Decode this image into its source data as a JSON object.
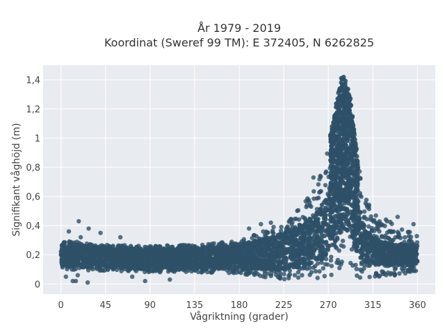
{
  "chart_data": {
    "type": "scatter",
    "title_line1": "År 1979 - 2019",
    "title_line2": "Koordinat (Sweref 99 TM): E 372405, N 6262825",
    "xlabel": "Vågriktning (grader)",
    "ylabel": "Signifikant våghöjd (m)",
    "xlim": [
      -18,
      378
    ],
    "ylim": [
      -0.07,
      1.5
    ],
    "xticks": [
      {
        "value": 0,
        "label": "0"
      },
      {
        "value": 45,
        "label": "45"
      },
      {
        "value": 90,
        "label": "90"
      },
      {
        "value": 135,
        "label": "135"
      },
      {
        "value": 180,
        "label": "180"
      },
      {
        "value": 225,
        "label": "225"
      },
      {
        "value": 270,
        "label": "270"
      },
      {
        "value": 315,
        "label": "315"
      },
      {
        "value": 360,
        "label": "360"
      }
    ],
    "yticks": [
      {
        "value": 0,
        "label": "0"
      },
      {
        "value": 0.2,
        "label": "0,2"
      },
      {
        "value": 0.4,
        "label": "0,4"
      },
      {
        "value": 0.6,
        "label": "0,6"
      },
      {
        "value": 0.8,
        "label": "0,8"
      },
      {
        "value": 1.0,
        "label": "1"
      },
      {
        "value": 1.2,
        "label": "1,2"
      },
      {
        "value": 1.4,
        "label": "1,4"
      }
    ],
    "grid": true,
    "marker_color": "#2e5068",
    "background_color": "#e8ebf0",
    "envelope": {
      "direction": [
        0,
        45,
        90,
        135,
        180,
        200,
        225,
        245,
        260,
        270,
        278,
        283,
        287,
        292,
        297,
        305,
        315,
        330,
        345,
        360
      ],
      "upper": [
        0.3,
        0.27,
        0.26,
        0.27,
        0.3,
        0.35,
        0.42,
        0.55,
        0.72,
        0.95,
        1.25,
        1.42,
        1.42,
        1.3,
        1.0,
        0.62,
        0.5,
        0.44,
        0.38,
        0.33
      ],
      "lower": [
        0.1,
        0.09,
        0.08,
        0.08,
        0.07,
        0.05,
        0.03,
        0.03,
        0.04,
        0.05,
        0.07,
        0.08,
        0.08,
        0.07,
        0.05,
        0.04,
        0.04,
        0.05,
        0.06,
        0.08
      ],
      "core_low": [
        0.12,
        0.11,
        0.1,
        0.1,
        0.1,
        0.1,
        0.1,
        0.12,
        0.15,
        0.2,
        0.28,
        0.35,
        0.35,
        0.3,
        0.22,
        0.15,
        0.13,
        0.13,
        0.13,
        0.13
      ],
      "core_high": [
        0.28,
        0.25,
        0.24,
        0.25,
        0.27,
        0.3,
        0.35,
        0.42,
        0.5,
        0.62,
        0.9,
        1.1,
        1.1,
        0.95,
        0.7,
        0.4,
        0.32,
        0.28,
        0.27,
        0.27
      ]
    },
    "outliers": [
      {
        "x": 5,
        "y": 0.05
      },
      {
        "x": 8,
        "y": 0.36
      },
      {
        "x": 12,
        "y": 0.02
      },
      {
        "x": 15,
        "y": 0.02
      },
      {
        "x": 17,
        "y": 0.06
      },
      {
        "x": 18,
        "y": 0.43
      },
      {
        "x": 20,
        "y": 0.32
      },
      {
        "x": 27,
        "y": 0.01
      },
      {
        "x": 28,
        "y": 0.38
      },
      {
        "x": 40,
        "y": 0.35
      },
      {
        "x": 60,
        "y": 0.32
      },
      {
        "x": 72,
        "y": 0.05
      },
      {
        "x": 85,
        "y": 0.02
      },
      {
        "x": 110,
        "y": 0.03
      },
      {
        "x": 190,
        "y": 0.38
      },
      {
        "x": 202,
        "y": 0.41
      },
      {
        "x": 212,
        "y": 0.42
      },
      {
        "x": 255,
        "y": 0.73
      },
      {
        "x": 340,
        "y": 0.46
      },
      {
        "x": 356,
        "y": 0.41
      }
    ]
  }
}
